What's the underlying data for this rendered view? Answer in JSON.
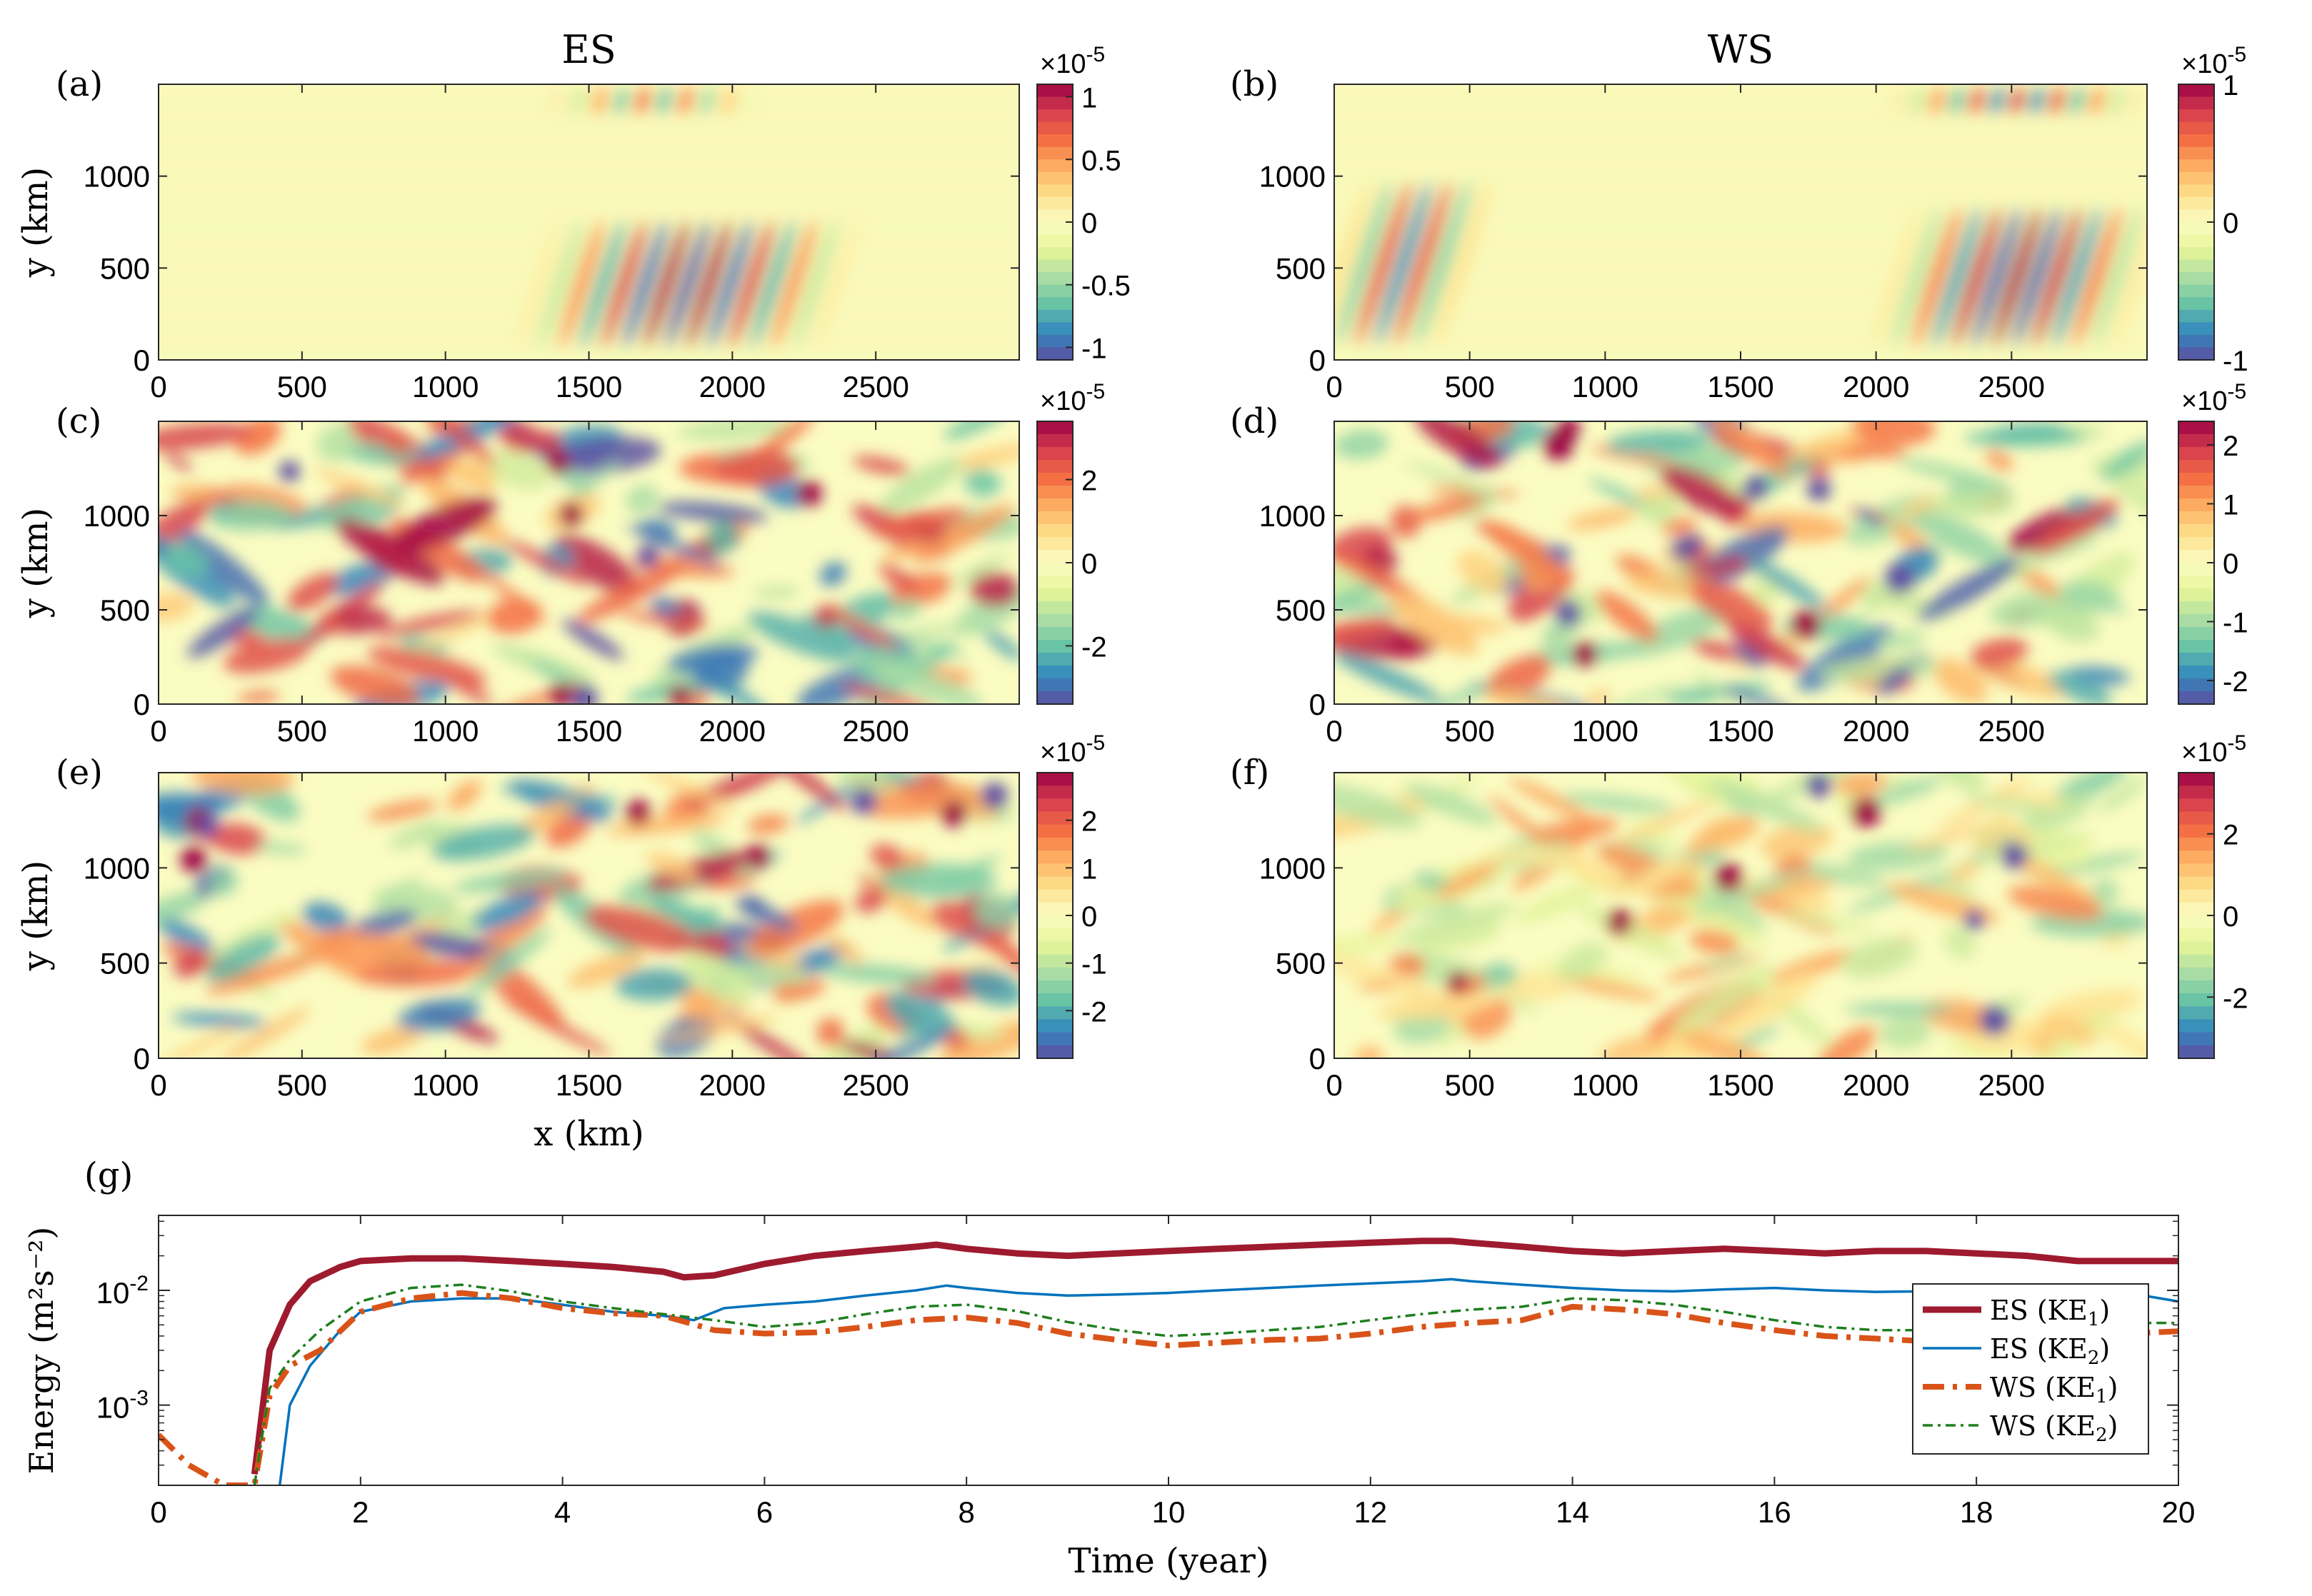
{
  "column_titles": [
    "ES",
    "WS"
  ],
  "chart_data": [
    {
      "type": "heatmap",
      "panel": "(a)",
      "column_title": "ES",
      "xlim": [
        0,
        3000
      ],
      "ylim": [
        0,
        1500
      ],
      "xticks": [
        "0",
        "500",
        "1000",
        "1500",
        "2000",
        "2500"
      ],
      "yticks": [
        "0",
        "500",
        "1000"
      ],
      "ylabel": "y (km)",
      "xlabel": "",
      "colorbar": {
        "range": [
          -1.1,
          1.1
        ],
        "ticks": [
          1,
          0.5,
          0,
          -0.5,
          -1
        ],
        "tick_labels": [
          "1",
          "0.5",
          "0",
          "-0.5",
          "-1"
        ],
        "exponent": "×10^-5"
      }
    },
    {
      "type": "heatmap",
      "panel": "(b)",
      "column_title": "WS",
      "xlim": [
        0,
        3000
      ],
      "ylim": [
        0,
        1500
      ],
      "xticks": [
        "0",
        "500",
        "1000",
        "1500",
        "2000",
        "2500"
      ],
      "yticks": [
        "0",
        "500",
        "1000"
      ],
      "ylabel": "",
      "xlabel": "",
      "colorbar": {
        "range": [
          -1,
          1
        ],
        "ticks": [
          1,
          0,
          -1
        ],
        "tick_labels": [
          "1",
          "0",
          "-1"
        ],
        "exponent": "×10^-5"
      }
    },
    {
      "type": "heatmap",
      "panel": "(c)",
      "column_title": "",
      "xlim": [
        0,
        3000
      ],
      "ylim": [
        0,
        1500
      ],
      "xticks": [
        "0",
        "500",
        "1000",
        "1500",
        "2000",
        "2500"
      ],
      "yticks": [
        "0",
        "500",
        "1000"
      ],
      "ylabel": "y (km)",
      "xlabel": "",
      "colorbar": {
        "range": [
          -3.4,
          3.4
        ],
        "ticks": [
          2,
          0,
          -2
        ],
        "tick_labels": [
          "2",
          "0",
          "-2"
        ],
        "exponent": "×10^-5"
      }
    },
    {
      "type": "heatmap",
      "panel": "(d)",
      "column_title": "",
      "xlim": [
        0,
        3000
      ],
      "ylim": [
        0,
        1500
      ],
      "xticks": [
        "0",
        "500",
        "1000",
        "1500",
        "2000",
        "2500"
      ],
      "yticks": [
        "0",
        "500",
        "1000"
      ],
      "ylabel": "",
      "xlabel": "",
      "colorbar": {
        "range": [
          -2.4,
          2.4
        ],
        "ticks": [
          2,
          1,
          0,
          -1,
          -2
        ],
        "tick_labels": [
          "2",
          "1",
          "0",
          "-1",
          "-2"
        ],
        "exponent": "×10^-5"
      }
    },
    {
      "type": "heatmap",
      "panel": "(e)",
      "column_title": "",
      "xlim": [
        0,
        3000
      ],
      "ylim": [
        0,
        1500
      ],
      "xticks": [
        "0",
        "500",
        "1000",
        "1500",
        "2000",
        "2500"
      ],
      "yticks": [
        "0",
        "500",
        "1000"
      ],
      "ylabel": "y (km)",
      "xlabel": "x (km)",
      "colorbar": {
        "range": [
          -3,
          3
        ],
        "ticks": [
          2,
          1,
          0,
          -1,
          -2
        ],
        "tick_labels": [
          "2",
          "1",
          "0",
          "-1",
          "-2"
        ],
        "exponent": "×10^-5"
      }
    },
    {
      "type": "heatmap",
      "panel": "(f)",
      "column_title": "",
      "xlim": [
        0,
        3000
      ],
      "ylim": [
        0,
        1500
      ],
      "xticks": [
        "0",
        "500",
        "1000",
        "1500",
        "2000",
        "2500"
      ],
      "yticks": [
        "0",
        "500",
        "1000"
      ],
      "ylabel": "",
      "xlabel": "",
      "colorbar": {
        "range": [
          -3.5,
          3.5
        ],
        "ticks": [
          2,
          0,
          -2
        ],
        "tick_labels": [
          "2",
          "0",
          "-2"
        ],
        "exponent": "×10^-5"
      }
    },
    {
      "type": "line",
      "panel": "(g)",
      "yscale": "log",
      "xlabel": "Time (year)",
      "ylabel": "Energy (m²s⁻²)",
      "xlim": [
        0,
        20
      ],
      "ylim": [
        0.0002,
        0.045
      ],
      "xticks": [
        "0",
        "2",
        "4",
        "6",
        "8",
        "10",
        "12",
        "14",
        "16",
        "18",
        "20"
      ],
      "yticks": [
        {
          "value": 0.01,
          "base": "10",
          "exp": "-2"
        },
        {
          "value": 0.001,
          "base": "10",
          "exp": "-3"
        }
      ],
      "legend_position": "right",
      "series": [
        {
          "name": "ES (KE1)",
          "legend_main": "ES (KE",
          "legend_sub": "1",
          "color": "#9e1a2e",
          "style": "solid-thick",
          "x": [
            0.95,
            1.1,
            1.3,
            1.5,
            1.8,
            2,
            2.5,
            3,
            3.5,
            4,
            4.5,
            5,
            5.2,
            5.5,
            6,
            6.5,
            7,
            7.5,
            7.7,
            8,
            8.5,
            9,
            9.5,
            10,
            10.5,
            11,
            11.5,
            12,
            12.5,
            12.8,
            13,
            13.5,
            14,
            14.5,
            15,
            15.5,
            16,
            16.5,
            17,
            17.5,
            18,
            18.5,
            19,
            19.5,
            20
          ],
          "y": [
            0.00025,
            0.003,
            0.0075,
            0.012,
            0.016,
            0.018,
            0.019,
            0.019,
            0.018,
            0.017,
            0.016,
            0.0145,
            0.013,
            0.0135,
            0.017,
            0.02,
            0.022,
            0.024,
            0.025,
            0.023,
            0.021,
            0.02,
            0.021,
            0.022,
            0.023,
            0.024,
            0.025,
            0.026,
            0.027,
            0.027,
            0.026,
            0.024,
            0.022,
            0.021,
            0.022,
            0.023,
            0.022,
            0.021,
            0.022,
            0.022,
            0.021,
            0.02,
            0.018,
            0.018,
            0.018
          ]
        },
        {
          "name": "ES (KE2)",
          "legend_main": "ES (KE",
          "legend_sub": "2",
          "color": "#0072bd",
          "style": "solid-thin",
          "x": [
            1.2,
            1.3,
            1.5,
            1.8,
            2,
            2.5,
            3,
            3.5,
            4,
            4.5,
            5,
            5.3,
            5.6,
            6,
            6.5,
            7,
            7.5,
            7.8,
            8,
            8.5,
            9,
            9.5,
            10,
            10.5,
            11,
            11.5,
            12,
            12.5,
            12.8,
            13,
            13.5,
            14,
            14.5,
            15,
            15.5,
            16,
            16.5,
            17,
            17.5,
            18,
            18.5,
            19,
            19.5,
            20
          ],
          "y": [
            0.0002,
            0.001,
            0.0022,
            0.0045,
            0.0065,
            0.008,
            0.0085,
            0.0085,
            0.0075,
            0.0065,
            0.006,
            0.0055,
            0.007,
            0.0075,
            0.008,
            0.009,
            0.01,
            0.011,
            0.0105,
            0.0095,
            0.009,
            0.0092,
            0.0095,
            0.01,
            0.0105,
            0.011,
            0.0115,
            0.012,
            0.0125,
            0.012,
            0.0112,
            0.0105,
            0.01,
            0.0098,
            0.0102,
            0.0105,
            0.01,
            0.0097,
            0.0098,
            0.01,
            0.0098,
            0.0093,
            0.0095,
            0.008
          ]
        },
        {
          "name": "WS (KE1)",
          "legend_main": "WS (KE",
          "legend_sub": "1",
          "color": "#d95319",
          "style": "dashdot-thick",
          "x": [
            0,
            0.3,
            0.65,
            0.7,
            0.95,
            1.1,
            1.3,
            1.6,
            2,
            2.5,
            3,
            3.5,
            4,
            4.5,
            5,
            5.5,
            6,
            6.5,
            7,
            7.5,
            8,
            8.5,
            9,
            9.5,
            10,
            10.5,
            11,
            11.5,
            12,
            12.5,
            13,
            13.5,
            14,
            14.5,
            15,
            15.5,
            16,
            16.5,
            17,
            17.5,
            18,
            18.5,
            19,
            19.5,
            20
          ],
          "y": [
            0.00055,
            0.0003,
            0.0002,
            0.0002,
            0.0002,
            0.0012,
            0.0022,
            0.003,
            0.0065,
            0.0085,
            0.0095,
            0.0085,
            0.007,
            0.0063,
            0.006,
            0.0045,
            0.0042,
            0.0043,
            0.0048,
            0.0055,
            0.0058,
            0.0052,
            0.0042,
            0.0037,
            0.0033,
            0.0035,
            0.0037,
            0.0038,
            0.0042,
            0.0048,
            0.0052,
            0.0055,
            0.0072,
            0.0068,
            0.0062,
            0.0052,
            0.0045,
            0.004,
            0.0038,
            0.0036,
            0.0035,
            0.0037,
            0.004,
            0.0042,
            0.0044
          ]
        },
        {
          "name": "WS (KE2)",
          "legend_main": "WS (KE",
          "legend_sub": "2",
          "color": "#1e7f1e",
          "style": "dashdot-thin",
          "x": [
            0.95,
            1.1,
            1.3,
            1.6,
            2,
            2.5,
            3,
            3.5,
            4,
            4.5,
            5,
            5.5,
            6,
            6.5,
            7,
            7.5,
            8,
            8.5,
            9,
            9.5,
            10,
            10.5,
            11,
            11.5,
            12,
            12.5,
            13,
            13.5,
            14,
            14.5,
            15,
            15.5,
            16,
            16.5,
            17,
            17.5,
            18,
            18.5,
            19,
            19.5,
            20
          ],
          "y": [
            0.0002,
            0.0014,
            0.0025,
            0.0045,
            0.008,
            0.0105,
            0.0112,
            0.0098,
            0.008,
            0.007,
            0.0062,
            0.0055,
            0.0048,
            0.0052,
            0.0062,
            0.0072,
            0.0075,
            0.0066,
            0.0053,
            0.0045,
            0.004,
            0.0042,
            0.0045,
            0.0048,
            0.0055,
            0.0062,
            0.0068,
            0.0072,
            0.0085,
            0.0082,
            0.0075,
            0.0065,
            0.0055,
            0.0048,
            0.0045,
            0.0045,
            0.0046,
            0.0048,
            0.005,
            0.0052,
            0.0052
          ]
        }
      ]
    }
  ]
}
